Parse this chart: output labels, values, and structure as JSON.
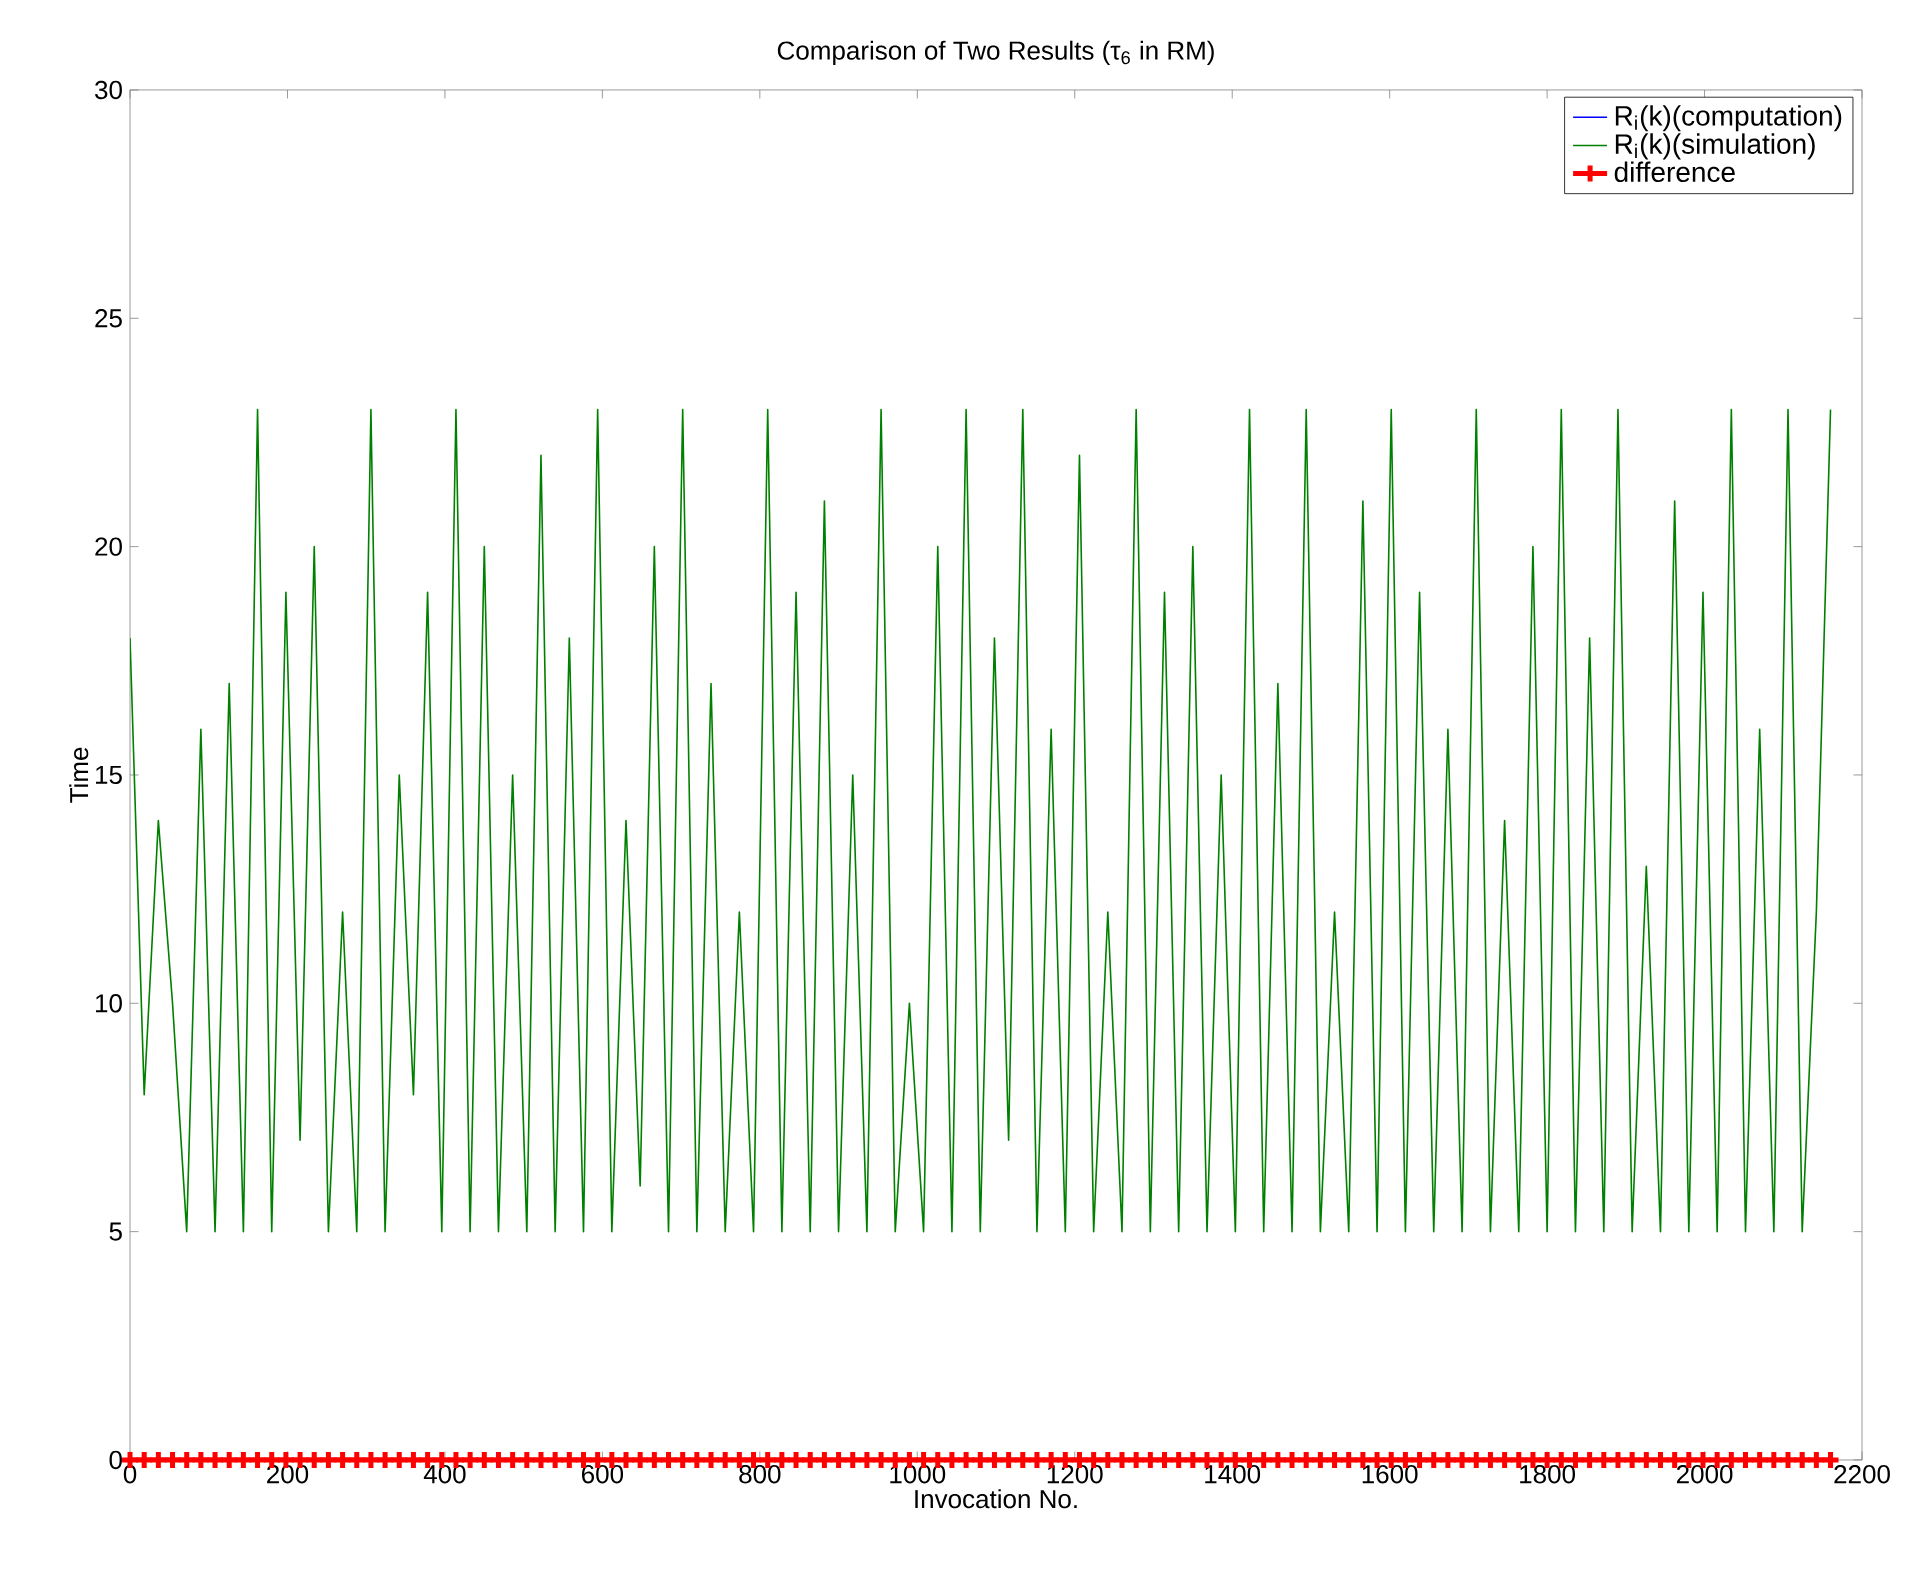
{
  "chart_data": {
    "type": "line",
    "title": "Comparison of Two Results (τ$_{6}$ in RM)",
    "xlabel": "Invocation No.",
    "ylabel": "Time",
    "x": [
      0,
      18,
      36,
      54,
      72,
      90,
      108,
      126,
      144,
      162,
      180,
      198,
      216,
      234,
      252,
      270,
      288,
      306,
      324,
      342,
      360,
      378,
      396,
      414,
      432,
      450,
      468,
      486,
      504,
      522,
      540,
      558,
      576,
      594,
      612,
      630,
      648,
      666,
      684,
      702,
      720,
      738,
      756,
      774,
      792,
      810,
      828,
      846,
      864,
      882,
      900,
      918,
      936,
      954,
      972,
      990,
      1008,
      1026,
      1044,
      1062,
      1080,
      1098,
      1116,
      1134,
      1152,
      1170,
      1188,
      1206,
      1224,
      1242,
      1260,
      1278,
      1296,
      1314,
      1332,
      1350,
      1368,
      1386,
      1404,
      1422,
      1440,
      1458,
      1476,
      1494,
      1512,
      1530,
      1548,
      1566,
      1584,
      1602,
      1620,
      1638,
      1656,
      1674,
      1692,
      1710,
      1728,
      1746,
      1764,
      1782,
      1800,
      1818,
      1836,
      1854,
      1872,
      1890,
      1908,
      1926,
      1944,
      1962,
      1980,
      1998,
      2016,
      2034,
      2052,
      2070,
      2088,
      2106,
      2124,
      2142,
      2160
    ],
    "series": [
      {
        "name": "R$_{i}$(k)(computation)",
        "color": "#0000ff",
        "values": [
          null,
          null,
          null,
          null,
          null,
          null,
          null,
          null,
          null,
          null,
          null,
          null,
          null,
          null,
          null,
          null,
          null,
          null,
          null,
          null,
          null,
          null,
          null,
          null,
          null,
          null,
          null,
          null,
          null,
          null,
          null,
          null,
          null,
          null,
          null,
          null,
          null,
          null,
          null,
          null,
          null,
          null,
          null,
          null,
          null,
          null,
          null,
          null,
          null,
          null,
          null,
          null,
          null,
          null,
          null,
          null,
          null,
          null,
          null,
          null,
          null,
          null,
          null,
          null,
          null,
          null,
          null,
          null,
          null,
          null,
          null,
          null,
          null,
          null,
          null,
          null,
          null,
          null,
          null,
          null,
          null,
          null,
          null,
          null,
          null,
          null,
          null,
          null,
          null,
          null,
          null,
          null,
          null,
          null,
          null,
          null,
          null,
          null,
          null,
          null,
          null,
          null,
          null,
          null,
          null,
          null,
          null,
          null,
          null,
          null,
          null,
          null,
          null,
          null,
          null,
          null,
          null,
          null,
          null,
          null,
          null
        ]
      },
      {
        "name": "R$_{i}$(k)(simulation)",
        "color": "#008000",
        "values": [
          18,
          8,
          14,
          10,
          5,
          16,
          5,
          17,
          5,
          23,
          5,
          19,
          7,
          20,
          5,
          12,
          5,
          23,
          5,
          15,
          8,
          19,
          5,
          23,
          5,
          20,
          5,
          15,
          5,
          22,
          5,
          18,
          5,
          23,
          5,
          14,
          6,
          20,
          5,
          23,
          5,
          17,
          5,
          12,
          5,
          23,
          5,
          19,
          5,
          21,
          5,
          15,
          5,
          23,
          5,
          10,
          5,
          20,
          5,
          23,
          5,
          18,
          7,
          23,
          5,
          16,
          5,
          22,
          5,
          12,
          5,
          23,
          5,
          19,
          5,
          20,
          5,
          15,
          5,
          23,
          5,
          17,
          5,
          23,
          5,
          12,
          5,
          21,
          5,
          23,
          5,
          19,
          5,
          16,
          5,
          23,
          5,
          14,
          5,
          20,
          5,
          23,
          5,
          18,
          5,
          23,
          5,
          13,
          5,
          21,
          5,
          19,
          5,
          23,
          5,
          16,
          5,
          23,
          5,
          12,
          23
        ]
      },
      {
        "name": "difference",
        "color": "#ff0000",
        "marker": "cross",
        "values": [
          0,
          0,
          0,
          0,
          0,
          0,
          0,
          0,
          0,
          0,
          0,
          0,
          0,
          0,
          0,
          0,
          0,
          0,
          0,
          0,
          0,
          0,
          0,
          0,
          0,
          0,
          0,
          0,
          0,
          0,
          0,
          0,
          0,
          0,
          0,
          0,
          0,
          0,
          0,
          0,
          0,
          0,
          0,
          0,
          0,
          0,
          0,
          0,
          0,
          0,
          0,
          0,
          0,
          0,
          0,
          0,
          0,
          0,
          0,
          0,
          0,
          0,
          0,
          0,
          0,
          0,
          0,
          0,
          0,
          0,
          0,
          0,
          0,
          0,
          0,
          0,
          0,
          0,
          0,
          0,
          0,
          0,
          0,
          0,
          0,
          0,
          0,
          0,
          0,
          0,
          0,
          0,
          0,
          0,
          0,
          0,
          0,
          0,
          0,
          0,
          0,
          0,
          0,
          0,
          0,
          0,
          0,
          0,
          0,
          0,
          0,
          0,
          0,
          0,
          0,
          0,
          0,
          0,
          0,
          0,
          0
        ]
      }
    ],
    "xlim": [
      0,
      2200
    ],
    "xticks": [
      0,
      200,
      400,
      600,
      800,
      1000,
      1200,
      1400,
      1600,
      1800,
      2000,
      2200
    ],
    "ylim": [
      0,
      30
    ],
    "yticks": [
      0,
      5,
      10,
      15,
      20,
      25,
      30
    ],
    "legend": "top right",
    "grid": false,
    "line_style": "solid"
  }
}
